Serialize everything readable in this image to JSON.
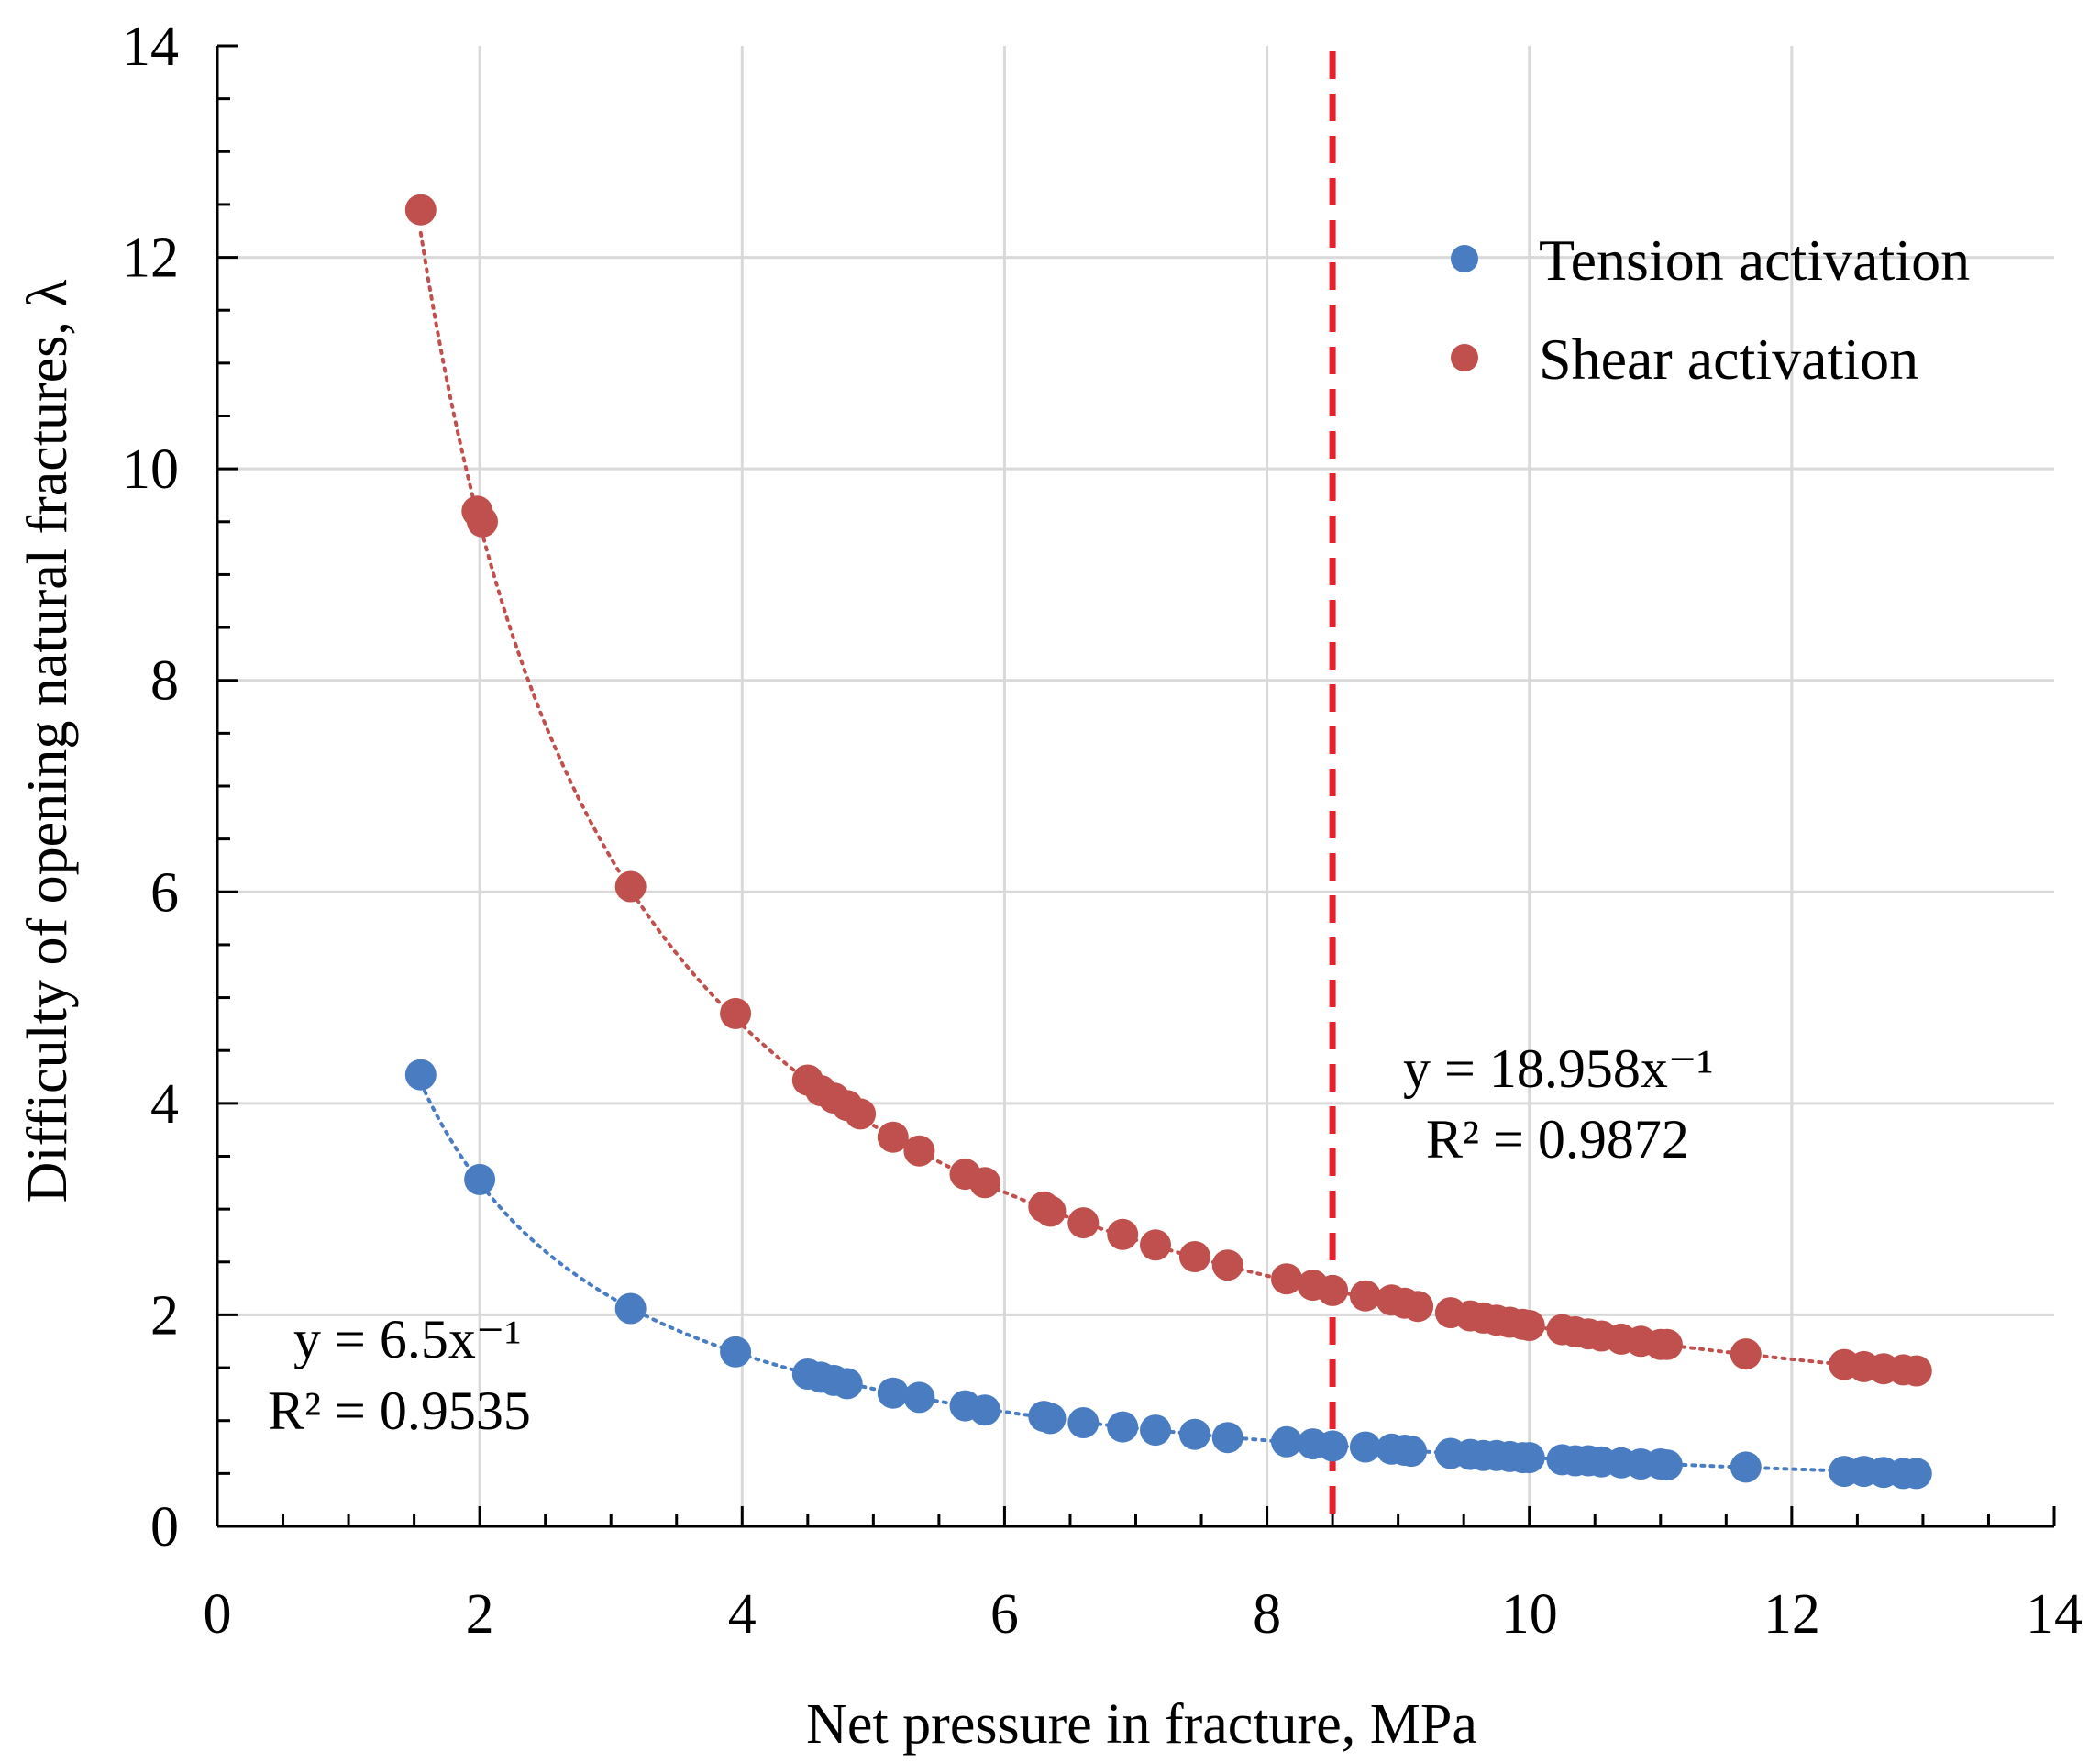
{
  "chart_data": {
    "type": "scatter",
    "title": "",
    "xlabel": "Net pressure in fracture, MPa",
    "ylabel": "Difficulty of opening natural fractures, λ",
    "xlim": [
      0,
      14
    ],
    "ylim": [
      0,
      14
    ],
    "xticks": [
      "0",
      "2",
      "4",
      "6",
      "8",
      "10",
      "12",
      "14"
    ],
    "yticks": [
      "0",
      "2",
      "4",
      "6",
      "8",
      "10",
      "12",
      "14"
    ],
    "grid": true,
    "legend_position": "top-right",
    "reference_line": {
      "orientation": "vertical",
      "x": 8.5,
      "color": "#e8202a",
      "style": "dashed"
    },
    "series": [
      {
        "name": "Tension activation",
        "color": "#4a7cc1",
        "trendline": {
          "coef": 6.5,
          "exponent": -1,
          "equation": "y = 6.5x⁻¹",
          "r2": "R² = 0.9535"
        },
        "x": [
          1.55,
          2.0,
          3.15,
          3.95,
          4.5,
          4.6,
          4.7,
          4.8,
          5.15,
          5.35,
          5.7,
          5.85,
          6.3,
          6.35,
          6.6,
          6.9,
          7.15,
          7.45,
          7.7,
          8.15,
          8.35,
          8.5,
          8.75,
          8.95,
          9.05,
          9.1,
          9.4,
          9.55,
          9.65,
          9.75,
          9.85,
          9.95,
          10.0,
          10.25,
          10.35,
          10.45,
          10.55,
          10.7,
          10.85,
          11.0,
          11.05,
          11.65,
          12.4,
          12.55,
          12.7,
          12.85,
          12.95
        ],
        "y": [
          4.27,
          3.28,
          2.06,
          1.65,
          1.44,
          1.41,
          1.38,
          1.35,
          1.26,
          1.22,
          1.14,
          1.1,
          1.04,
          1.02,
          0.98,
          0.94,
          0.91,
          0.87,
          0.84,
          0.8,
          0.78,
          0.76,
          0.75,
          0.73,
          0.72,
          0.71,
          0.69,
          0.68,
          0.67,
          0.67,
          0.66,
          0.65,
          0.65,
          0.63,
          0.62,
          0.62,
          0.61,
          0.6,
          0.59,
          0.59,
          0.58,
          0.56,
          0.52,
          0.52,
          0.51,
          0.5,
          0.5
        ]
      },
      {
        "name": "Shear activation",
        "color": "#c0504d",
        "trendline": {
          "coef": 18.958,
          "exponent": -1,
          "equation": "y = 18.958x⁻¹",
          "r2": "R² = 0.9872"
        },
        "x": [
          1.55,
          1.98,
          2.02,
          3.15,
          3.95,
          4.5,
          4.6,
          4.7,
          4.8,
          4.9,
          5.15,
          5.35,
          5.7,
          5.85,
          6.3,
          6.35,
          6.6,
          6.9,
          7.15,
          7.45,
          7.7,
          8.15,
          8.35,
          8.5,
          8.75,
          8.95,
          9.05,
          9.15,
          9.4,
          9.55,
          9.65,
          9.75,
          9.85,
          9.95,
          10.0,
          10.25,
          10.35,
          10.45,
          10.55,
          10.7,
          10.85,
          11.0,
          11.05,
          11.65,
          12.4,
          12.55,
          12.7,
          12.85,
          12.95
        ],
        "y": [
          12.45,
          9.6,
          9.5,
          6.05,
          4.85,
          4.22,
          4.12,
          4.05,
          3.98,
          3.9,
          3.68,
          3.55,
          3.33,
          3.25,
          3.02,
          2.98,
          2.87,
          2.76,
          2.66,
          2.55,
          2.47,
          2.34,
          2.28,
          2.23,
          2.18,
          2.14,
          2.11,
          2.08,
          2.02,
          1.99,
          1.97,
          1.95,
          1.93,
          1.91,
          1.9,
          1.86,
          1.84,
          1.82,
          1.8,
          1.77,
          1.75,
          1.72,
          1.72,
          1.63,
          1.53,
          1.51,
          1.49,
          1.48,
          1.47
        ]
      }
    ]
  }
}
